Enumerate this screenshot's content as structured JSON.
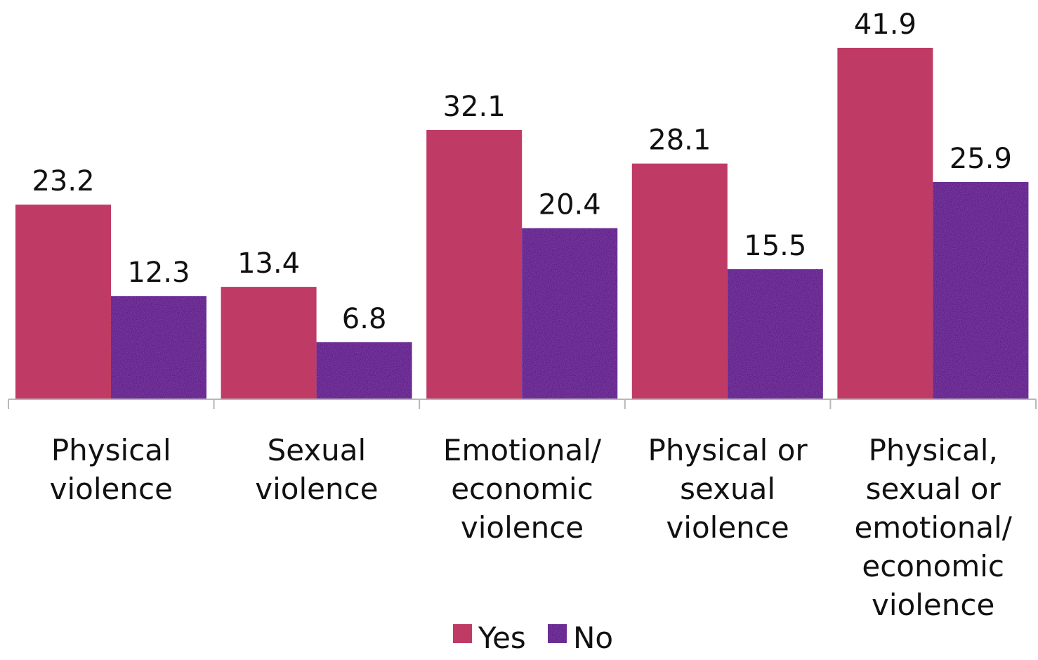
{
  "chart_data": {
    "type": "bar",
    "title": "",
    "xlabel": "",
    "ylabel": "",
    "ylim": [
      0,
      41.9
    ],
    "grid": false,
    "legend_position": "bottom",
    "categories": [
      [
        "Physical",
        "violence"
      ],
      [
        "Sexual",
        "violence"
      ],
      [
        "Emotional/",
        "economic",
        "violence"
      ],
      [
        "Physical or",
        "sexual",
        "violence"
      ],
      [
        "Physical,",
        "sexual or",
        "emotional/",
        "economic",
        "violence"
      ]
    ],
    "series": [
      {
        "name": "Yes",
        "color": "#bf3b65",
        "values": [
          23.2,
          13.4,
          32.1,
          28.1,
          41.9
        ]
      },
      {
        "name": "No",
        "color": "#3f1068",
        "values": [
          12.3,
          6.8,
          20.4,
          15.5,
          25.9
        ]
      }
    ]
  }
}
